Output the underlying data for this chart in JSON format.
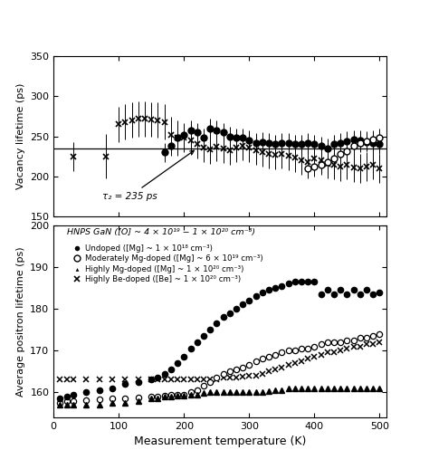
{
  "top_panel": {
    "ylabel": "Vacancy lifetime (ps)",
    "ylim": [
      150,
      350
    ],
    "yticks": [
      150,
      200,
      250,
      300,
      350
    ],
    "xlim": [
      0,
      510
    ],
    "xticks": [
      0,
      100,
      200,
      300,
      400,
      500
    ],
    "reference_line": 235,
    "annotation_text": "τ₂ = 235 ps",
    "undoped_x": [
      170,
      180,
      190,
      200,
      210,
      220,
      230,
      240,
      250,
      260,
      270,
      280,
      290,
      300,
      310,
      320,
      330,
      340,
      350,
      360,
      370,
      380,
      390,
      400,
      410,
      420,
      430,
      440,
      450,
      460,
      470,
      480,
      490,
      500
    ],
    "undoped_y": [
      230,
      238,
      248,
      252,
      258,
      255,
      248,
      260,
      258,
      255,
      250,
      248,
      248,
      245,
      242,
      243,
      242,
      240,
      242,
      242,
      240,
      240,
      242,
      240,
      238,
      235,
      240,
      242,
      244,
      246,
      245,
      243,
      242,
      240
    ],
    "undoped_yerr": [
      12,
      12,
      12,
      12,
      12,
      12,
      12,
      12,
      12,
      12,
      12,
      12,
      12,
      12,
      12,
      12,
      12,
      12,
      12,
      12,
      12,
      12,
      12,
      12,
      12,
      12,
      12,
      12,
      12,
      12,
      12,
      12,
      12,
      12
    ],
    "mod_x": [
      390,
      400,
      410,
      420,
      430,
      440,
      450,
      460,
      470,
      480,
      490,
      500
    ],
    "mod_y": [
      210,
      212,
      215,
      218,
      222,
      228,
      232,
      238,
      242,
      244,
      246,
      248
    ],
    "mod_yerr": [
      12,
      12,
      12,
      12,
      12,
      12,
      12,
      12,
      12,
      12,
      12,
      12
    ],
    "be_x": [
      30,
      80,
      100,
      110,
      120,
      130,
      140,
      150,
      160,
      170,
      180,
      190,
      200,
      210,
      220,
      230,
      240,
      250,
      260,
      270,
      280,
      290,
      300,
      310,
      320,
      330,
      340,
      350,
      360,
      370,
      380,
      390,
      400,
      410,
      420,
      430,
      440,
      450,
      460,
      470,
      480,
      490,
      500
    ],
    "be_y": [
      225,
      225,
      265,
      268,
      270,
      272,
      272,
      271,
      270,
      268,
      252,
      248,
      248,
      245,
      240,
      236,
      234,
      237,
      235,
      233,
      236,
      238,
      236,
      233,
      230,
      228,
      227,
      228,
      226,
      223,
      220,
      218,
      222,
      220,
      216,
      214,
      212,
      214,
      211,
      210,
      212,
      214,
      210
    ],
    "be_yerr": [
      18,
      28,
      22,
      22,
      22,
      22,
      22,
      22,
      22,
      22,
      22,
      22,
      18,
      18,
      18,
      18,
      18,
      18,
      18,
      18,
      18,
      18,
      18,
      18,
      18,
      18,
      18,
      18,
      18,
      18,
      18,
      18,
      18,
      18,
      18,
      18,
      18,
      18,
      18,
      18,
      18,
      18,
      18
    ]
  },
  "bottom_panel": {
    "ylabel": "Average positron lifetime (ps)",
    "ylim": [
      154,
      200
    ],
    "yticks": [
      160,
      170,
      180,
      190,
      200
    ],
    "xlabel": "Measurement temperature (K)",
    "xlim": [
      0,
      510
    ],
    "xticks": [
      0,
      100,
      200,
      300,
      400,
      500
    ],
    "header_text": "HNPS GaN ([O] ~ 4 × 10¹⁹ − 1 × 10²⁰ cm⁻³)",
    "legend_entries": [
      "Undoped ([Mg] ~ 1 × 10¹⁸ cm⁻³)",
      "Moderately Mg-doped ([Mg] ~ 6 × 10¹⁹ cm⁻³)",
      "Highly Mg-doped ([Mg] ~ 1 × 10²⁰ cm⁻³)",
      "Highly Be-doped ([Be] ~ 1 × 10²⁰ cm⁻³)"
    ],
    "undoped_x": [
      10,
      20,
      30,
      50,
      70,
      90,
      110,
      130,
      150,
      160,
      170,
      180,
      190,
      200,
      210,
      220,
      230,
      240,
      250,
      260,
      270,
      280,
      290,
      300,
      310,
      320,
      330,
      340,
      350,
      360,
      370,
      380,
      390,
      400,
      410,
      420,
      430,
      440,
      450,
      460,
      470,
      480,
      490,
      500
    ],
    "undoped_y": [
      158.5,
      159,
      159.5,
      160,
      160.5,
      161,
      162,
      162.5,
      163,
      163.5,
      164.5,
      165.5,
      167,
      168.5,
      170.5,
      172,
      173.5,
      175,
      176.5,
      178,
      179,
      180,
      181,
      182,
      183,
      184,
      184.5,
      185,
      185.5,
      186,
      186.5,
      186.5,
      186.5,
      186.5,
      183.5,
      184.5,
      183.5,
      184.5,
      183.5,
      184.5,
      183.5,
      184.5,
      183.5,
      184
    ],
    "mod_x": [
      10,
      20,
      30,
      50,
      70,
      90,
      110,
      130,
      150,
      160,
      170,
      180,
      190,
      200,
      210,
      220,
      230,
      240,
      250,
      260,
      270,
      280,
      290,
      300,
      310,
      320,
      330,
      340,
      350,
      360,
      370,
      380,
      390,
      400,
      410,
      420,
      430,
      440,
      450,
      460,
      470,
      480,
      490,
      500
    ],
    "mod_y": [
      157.5,
      157.8,
      158,
      158.2,
      158.4,
      158.5,
      158.6,
      158.8,
      159,
      159,
      159.2,
      159.4,
      159.5,
      159.5,
      160,
      160.5,
      161.5,
      162.5,
      163.5,
      164.5,
      165,
      165.5,
      166,
      166.5,
      167.5,
      168,
      168.5,
      169,
      169.5,
      170,
      170,
      170.5,
      170.5,
      171,
      171.5,
      172,
      172,
      172,
      172.5,
      172.5,
      173,
      173,
      173.5,
      174
    ],
    "highly_mg_x": [
      10,
      20,
      30,
      50,
      70,
      90,
      110,
      130,
      150,
      160,
      170,
      180,
      190,
      200,
      210,
      220,
      230,
      240,
      250,
      260,
      270,
      280,
      290,
      300,
      310,
      320,
      330,
      340,
      350,
      360,
      370,
      380,
      390,
      400,
      410,
      420,
      430,
      440,
      450,
      460,
      470,
      480,
      490,
      500
    ],
    "highly_mg_y": [
      157,
      157,
      157,
      157,
      157,
      157.5,
      157.5,
      158,
      158.5,
      158.5,
      159,
      159,
      159.2,
      159.3,
      159.5,
      159.5,
      159.8,
      160,
      160,
      160,
      160,
      160,
      160,
      160,
      160,
      160,
      160.2,
      160.5,
      160.5,
      161,
      161,
      161,
      161,
      161,
      161,
      161,
      161,
      161,
      161,
      161,
      161,
      161,
      161,
      161
    ],
    "be_x": [
      10,
      20,
      30,
      50,
      70,
      90,
      110,
      130,
      150,
      160,
      170,
      180,
      190,
      200,
      210,
      220,
      230,
      240,
      250,
      260,
      270,
      280,
      290,
      300,
      310,
      320,
      330,
      340,
      350,
      360,
      370,
      380,
      390,
      400,
      410,
      420,
      430,
      440,
      450,
      460,
      470,
      480,
      490,
      500
    ],
    "be_y": [
      163,
      163,
      163,
      163,
      163,
      163,
      163,
      163,
      163,
      163,
      163,
      163,
      163,
      163,
      163,
      163,
      163,
      163,
      163.2,
      163.5,
      163.5,
      163.5,
      163.8,
      164,
      164,
      164.5,
      165,
      165.5,
      166,
      166.5,
      167,
      167.5,
      168,
      168.5,
      169,
      169.5,
      169.5,
      170,
      170.5,
      171,
      171,
      171.5,
      171.5,
      172
    ]
  }
}
